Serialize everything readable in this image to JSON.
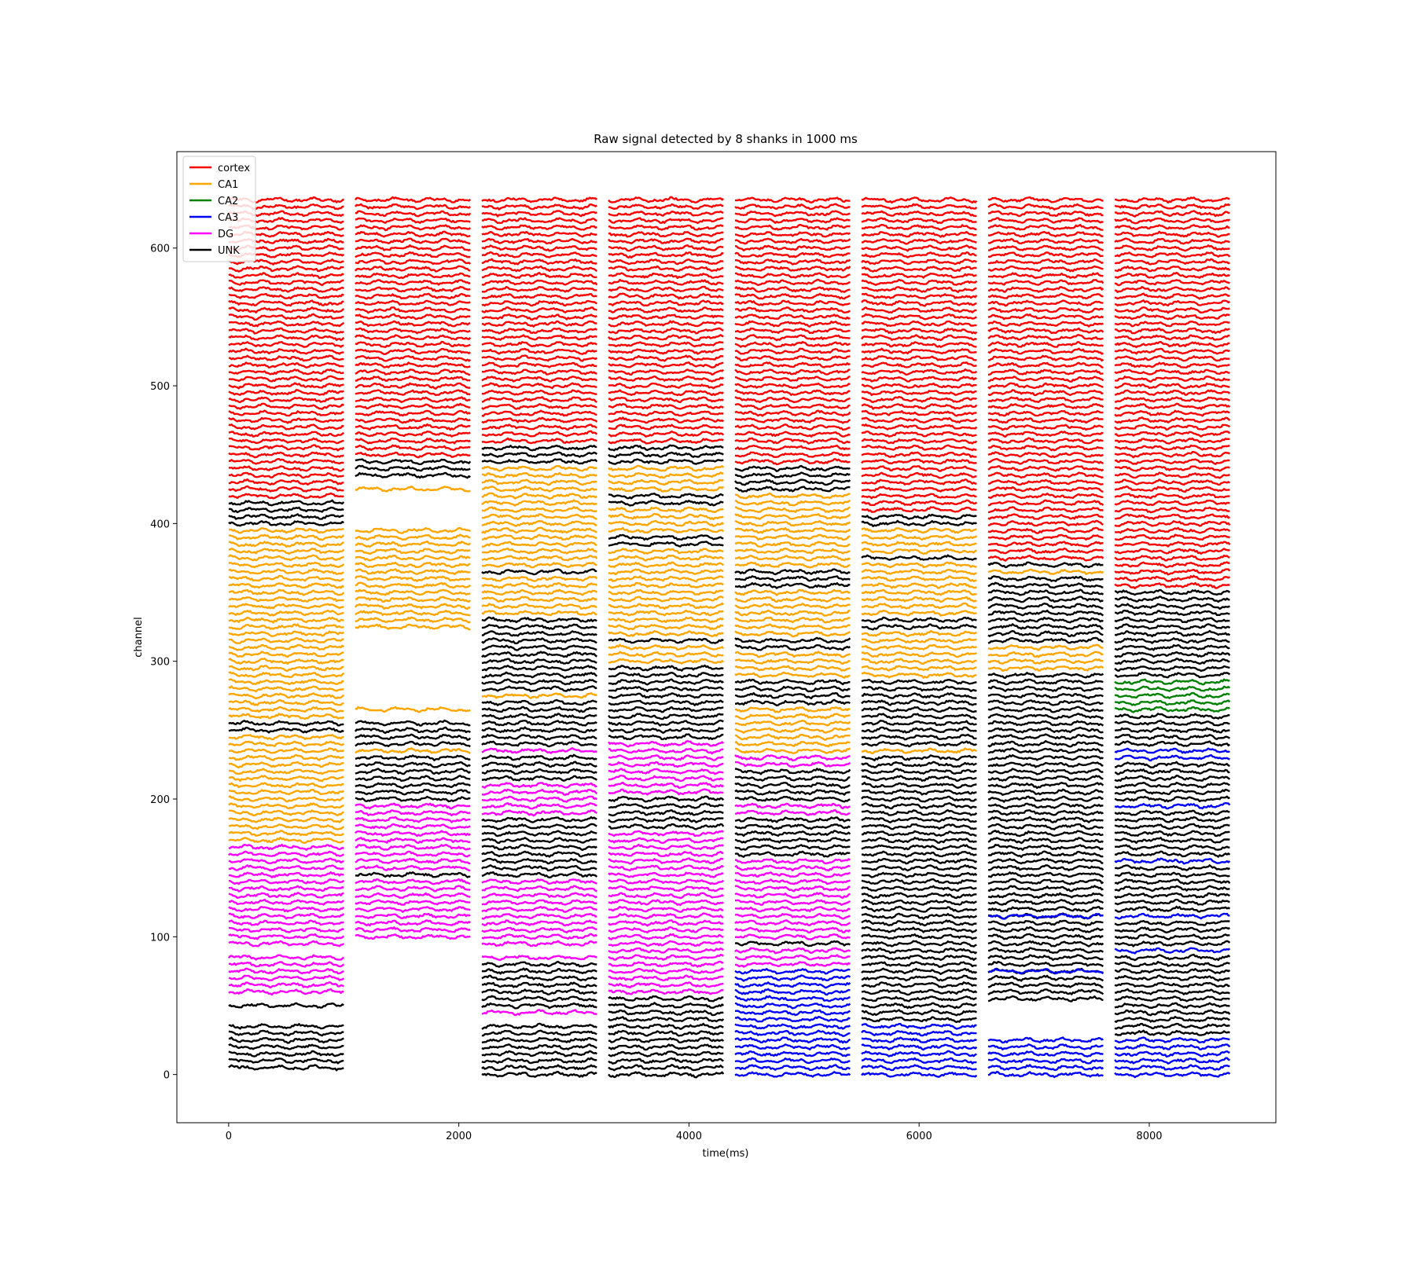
{
  "chart_data": {
    "type": "line",
    "title": "Raw signal detected by 8 shanks in 1000 ms",
    "xlabel": "time(ms)",
    "ylabel": "channel",
    "xlim": [
      -450,
      9100
    ],
    "ylim": [
      -35,
      670
    ],
    "xticks": [
      0,
      2000,
      4000,
      6000,
      8000
    ],
    "yticks": [
      0,
      100,
      200,
      300,
      400,
      500,
      600
    ],
    "grid": false,
    "legend_position": "top-left",
    "legend": [
      {
        "label": "cortex",
        "color": "#ff0000"
      },
      {
        "label": "CA1",
        "color": "#ffa500"
      },
      {
        "label": "CA2",
        "color": "#008000"
      },
      {
        "label": "CA3",
        "color": "#0000ff"
      },
      {
        "label": "DG",
        "color": "#ff00ff"
      },
      {
        "label": "UNK",
        "color": "#000000"
      }
    ],
    "shank_duration_ms": 1000,
    "shank_starts_ms": [
      0,
      1100,
      2200,
      3300,
      4400,
      5500,
      6600,
      7700
    ],
    "channel_step": 5,
    "shanks": [
      {
        "shank": 1,
        "start_ms": 0,
        "segments": [
          {
            "region": "cortex",
            "from": 420,
            "to": 635
          },
          {
            "region": "UNK",
            "from": 400,
            "to": 415
          },
          {
            "region": "CA1",
            "from": 340,
            "to": 395
          },
          {
            "region": "CA1",
            "from": 260,
            "to": 335
          },
          {
            "region": "UNK",
            "from": 250,
            "to": 255
          },
          {
            "region": "CA1",
            "from": 170,
            "to": 245
          },
          {
            "region": "DG",
            "from": 95,
            "to": 165
          },
          {
            "region": "DG",
            "from": 60,
            "to": 85
          },
          {
            "region": "UNK",
            "from": 50,
            "to": 50
          },
          {
            "region": "UNK",
            "from": 5,
            "to": 35
          }
        ]
      },
      {
        "shank": 2,
        "start_ms": 1100,
        "segments": [
          {
            "region": "cortex",
            "from": 450,
            "to": 635
          },
          {
            "region": "UNK",
            "from": 435,
            "to": 445
          },
          {
            "region": "CA1",
            "from": 425,
            "to": 425
          },
          {
            "region": "CA1",
            "from": 325,
            "to": 395
          },
          {
            "region": "CA1",
            "from": 265,
            "to": 265
          },
          {
            "region": "UNK",
            "from": 240,
            "to": 255
          },
          {
            "region": "CA1",
            "from": 235,
            "to": 235
          },
          {
            "region": "UNK",
            "from": 200,
            "to": 230
          },
          {
            "region": "DG",
            "from": 150,
            "to": 195
          },
          {
            "region": "UNK",
            "from": 145,
            "to": 145
          },
          {
            "region": "DG",
            "from": 100,
            "to": 140
          }
        ]
      },
      {
        "shank": 3,
        "start_ms": 2200,
        "segments": [
          {
            "region": "cortex",
            "from": 460,
            "to": 635
          },
          {
            "region": "UNK",
            "from": 445,
            "to": 455
          },
          {
            "region": "CA1",
            "from": 370,
            "to": 440
          },
          {
            "region": "UNK",
            "from": 365,
            "to": 365
          },
          {
            "region": "CA1",
            "from": 335,
            "to": 360
          },
          {
            "region": "UNK",
            "from": 280,
            "to": 330
          },
          {
            "region": "CA1",
            "from": 275,
            "to": 275
          },
          {
            "region": "UNK",
            "from": 240,
            "to": 270
          },
          {
            "region": "DG",
            "from": 235,
            "to": 235
          },
          {
            "region": "UNK",
            "from": 215,
            "to": 230
          },
          {
            "region": "DG",
            "from": 190,
            "to": 210
          },
          {
            "region": "UNK",
            "from": 145,
            "to": 185
          },
          {
            "region": "DG",
            "from": 95,
            "to": 140
          },
          {
            "region": "DG",
            "from": 85,
            "to": 85
          },
          {
            "region": "UNK",
            "from": 50,
            "to": 80
          },
          {
            "region": "DG",
            "from": 45,
            "to": 45
          },
          {
            "region": "UNK",
            "from": 0,
            "to": 35
          }
        ]
      },
      {
        "shank": 4,
        "start_ms": 3300,
        "segments": [
          {
            "region": "cortex",
            "from": 460,
            "to": 635
          },
          {
            "region": "UNK",
            "from": 445,
            "to": 455
          },
          {
            "region": "CA1",
            "from": 425,
            "to": 440
          },
          {
            "region": "UNK",
            "from": 415,
            "to": 420
          },
          {
            "region": "CA1",
            "from": 395,
            "to": 410
          },
          {
            "region": "UNK",
            "from": 385,
            "to": 390
          },
          {
            "region": "CA1",
            "from": 320,
            "to": 380
          },
          {
            "region": "UNK",
            "from": 315,
            "to": 315
          },
          {
            "region": "CA1",
            "from": 300,
            "to": 310
          },
          {
            "region": "UNK",
            "from": 245,
            "to": 295
          },
          {
            "region": "DG",
            "from": 205,
            "to": 240
          },
          {
            "region": "UNK",
            "from": 180,
            "to": 200
          },
          {
            "region": "DG",
            "from": 60,
            "to": 175
          },
          {
            "region": "UNK",
            "from": 0,
            "to": 55
          }
        ]
      },
      {
        "shank": 5,
        "start_ms": 4400,
        "segments": [
          {
            "region": "cortex",
            "from": 445,
            "to": 635
          },
          {
            "region": "UNK",
            "from": 425,
            "to": 440
          },
          {
            "region": "CA1",
            "from": 370,
            "to": 420
          },
          {
            "region": "UNK",
            "from": 355,
            "to": 365
          },
          {
            "region": "CA1",
            "from": 320,
            "to": 350
          },
          {
            "region": "UNK",
            "from": 310,
            "to": 315
          },
          {
            "region": "CA1",
            "from": 290,
            "to": 305
          },
          {
            "region": "UNK",
            "from": 270,
            "to": 285
          },
          {
            "region": "CA1",
            "from": 235,
            "to": 265
          },
          {
            "region": "DG",
            "from": 225,
            "to": 230
          },
          {
            "region": "UNK",
            "from": 200,
            "to": 220
          },
          {
            "region": "DG",
            "from": 190,
            "to": 195
          },
          {
            "region": "UNK",
            "from": 160,
            "to": 185
          },
          {
            "region": "DG",
            "from": 100,
            "to": 155
          },
          {
            "region": "UNK",
            "from": 95,
            "to": 95
          },
          {
            "region": "DG",
            "from": 80,
            "to": 90
          },
          {
            "region": "CA3",
            "from": 0,
            "to": 75
          }
        ]
      },
      {
        "shank": 6,
        "start_ms": 5500,
        "segments": [
          {
            "region": "cortex",
            "from": 410,
            "to": 635
          },
          {
            "region": "UNK",
            "from": 400,
            "to": 405
          },
          {
            "region": "CA1",
            "from": 380,
            "to": 395
          },
          {
            "region": "UNK",
            "from": 375,
            "to": 375
          },
          {
            "region": "CA1",
            "from": 335,
            "to": 370
          },
          {
            "region": "UNK",
            "from": 325,
            "to": 330
          },
          {
            "region": "CA1",
            "from": 290,
            "to": 320
          },
          {
            "region": "UNK",
            "from": 240,
            "to": 285
          },
          {
            "region": "CA1",
            "from": 235,
            "to": 235
          },
          {
            "region": "UNK",
            "from": 40,
            "to": 230
          },
          {
            "region": "CA3",
            "from": 0,
            "to": 35
          }
        ]
      },
      {
        "shank": 7,
        "start_ms": 6600,
        "segments": [
          {
            "region": "cortex",
            "from": 375,
            "to": 635
          },
          {
            "region": "UNK",
            "from": 370,
            "to": 370
          },
          {
            "region": "CA1",
            "from": 365,
            "to": 365
          },
          {
            "region": "UNK",
            "from": 315,
            "to": 360
          },
          {
            "region": "CA1",
            "from": 295,
            "to": 310
          },
          {
            "region": "UNK",
            "from": 55,
            "to": 290
          },
          {
            "region": "CA3",
            "from": 115,
            "to": 115
          },
          {
            "region": "CA3",
            "from": 75,
            "to": 75
          },
          {
            "region": "CA3",
            "from": 0,
            "to": 25
          }
        ]
      },
      {
        "shank": 8,
        "start_ms": 7700,
        "segments": [
          {
            "region": "cortex",
            "from": 355,
            "to": 635
          },
          {
            "region": "UNK",
            "from": 290,
            "to": 350
          },
          {
            "region": "CA2",
            "from": 265,
            "to": 285
          },
          {
            "region": "UNK",
            "from": 240,
            "to": 260
          },
          {
            "region": "CA3",
            "from": 230,
            "to": 235
          },
          {
            "region": "UNK",
            "from": 200,
            "to": 225
          },
          {
            "region": "CA3",
            "from": 195,
            "to": 195
          },
          {
            "region": "UNK",
            "from": 160,
            "to": 190
          },
          {
            "region": "CA3",
            "from": 155,
            "to": 155
          },
          {
            "region": "UNK",
            "from": 120,
            "to": 150
          },
          {
            "region": "CA3",
            "from": 115,
            "to": 115
          },
          {
            "region": "UNK",
            "from": 95,
            "to": 110
          },
          {
            "region": "CA3",
            "from": 90,
            "to": 90
          },
          {
            "region": "UNK",
            "from": 30,
            "to": 85
          },
          {
            "region": "CA3",
            "from": 0,
            "to": 25
          }
        ]
      }
    ]
  }
}
